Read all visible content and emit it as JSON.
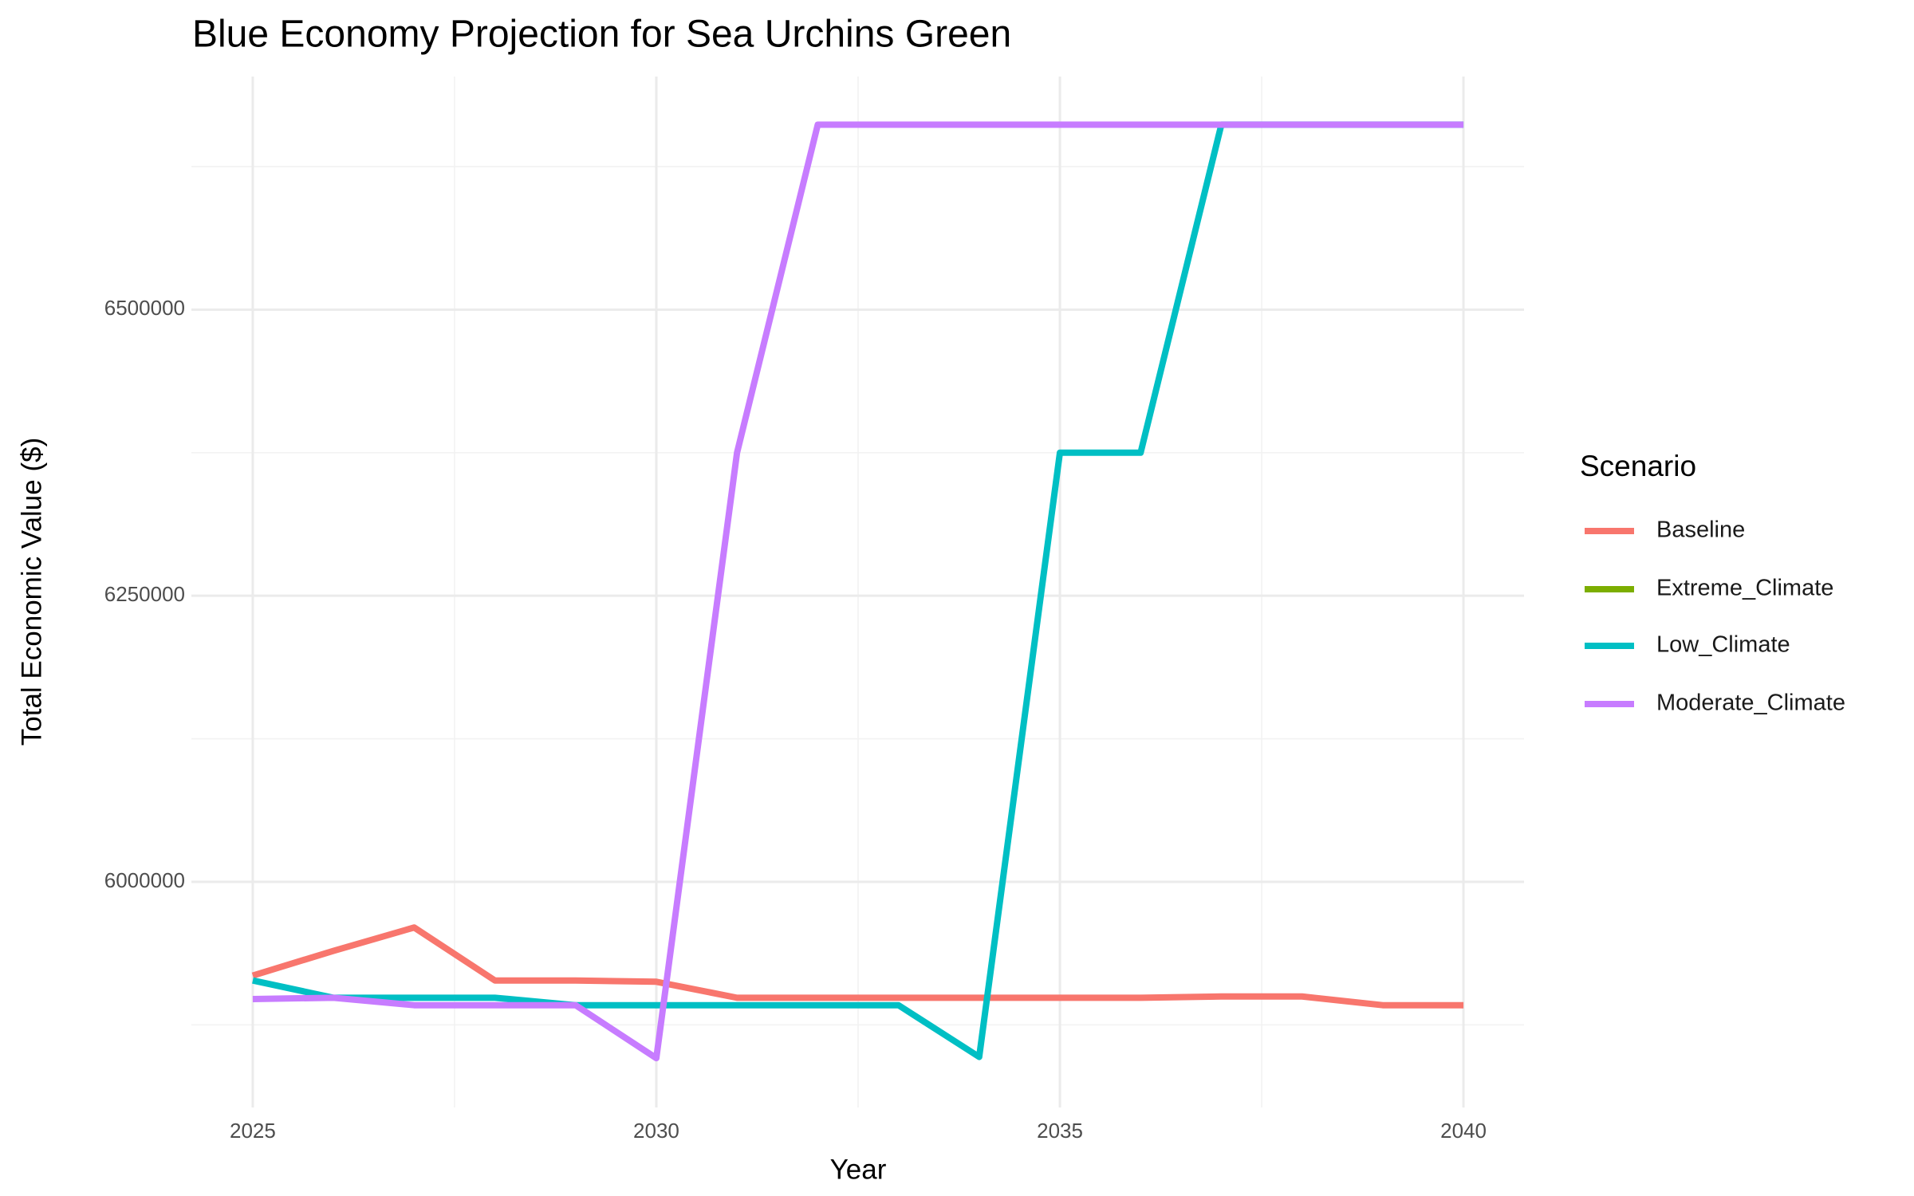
{
  "chart_data": {
    "type": "line",
    "title": "Blue Economy Projection for Sea Urchins Green",
    "x_label": "Year",
    "y_label": "Total Economic Value ($)",
    "legend_title": "Scenario",
    "legend": "right",
    "grid": true,
    "x": [
      2025,
      2026,
      2027,
      2028,
      2029,
      2030,
      2031,
      2032,
      2033,
      2034,
      2035,
      2036,
      2037,
      2038,
      2039,
      2040
    ],
    "xlim": [
      2024.24,
      2040.75
    ],
    "xticks": [
      2025,
      2030,
      2035,
      2040
    ],
    "ylim": [
      5802800,
      6703700
    ],
    "yticks": [
      6000000,
      6250000,
      6500000
    ],
    "series": [
      {
        "name": "Baseline",
        "color": "#F8766D",
        "values": [
          5918100,
          5939700,
          5960100,
          5913800,
          5913800,
          5912700,
          5898700,
          5898700,
          5898700,
          5898700,
          5898700,
          5898700,
          5899800,
          5899800,
          5892200,
          5892200
        ]
      },
      {
        "name": "Extreme_Climate",
        "color": "#7CAE00",
        "values": [
          null,
          null,
          null,
          null,
          null,
          null,
          null,
          null,
          null,
          null,
          null,
          null,
          null,
          null,
          null,
          null
        ]
      },
      {
        "name": "Low_Climate",
        "color": "#00BFC4",
        "values": [
          5913800,
          5898700,
          5898700,
          5898700,
          5892200,
          5892200,
          5892200,
          5892200,
          5892200,
          5847000,
          6375000,
          6375000,
          6661600,
          6661600,
          6661600,
          6661600
        ]
      },
      {
        "name": "Moderate_Climate",
        "color": "#C77CFF",
        "values": [
          5897600,
          5898700,
          5892200,
          5892200,
          5892200,
          5845900,
          6375000,
          6661600,
          6661600,
          6661600,
          6661600,
          6661600,
          6661600,
          6661600,
          6661600,
          6661600
        ]
      }
    ]
  }
}
